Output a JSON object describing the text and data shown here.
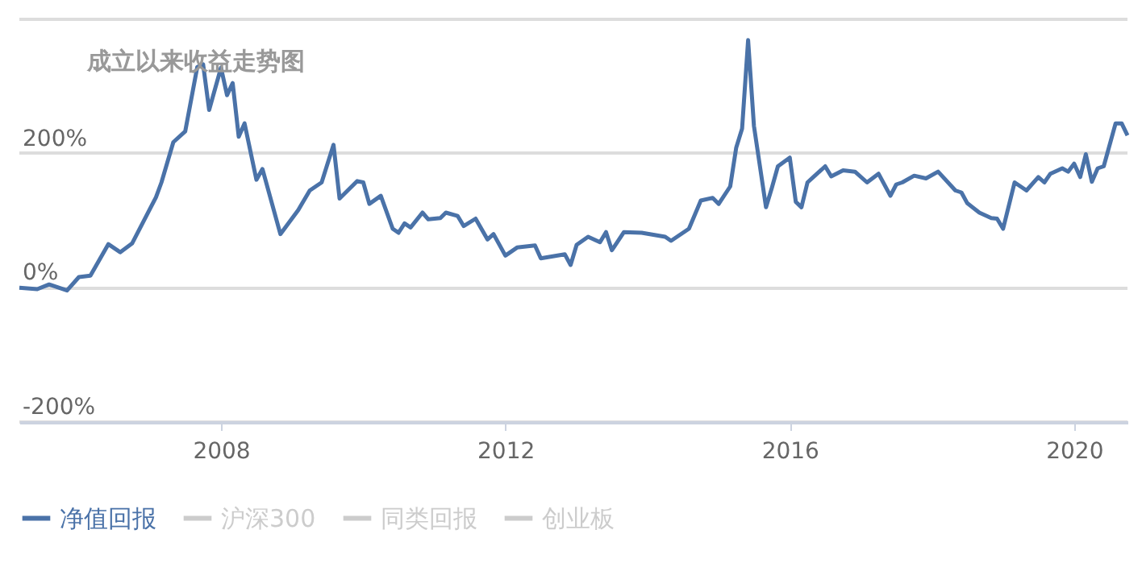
{
  "chart_data": {
    "type": "line",
    "title": "成立以来收益走势图",
    "x": [
      "2005-03",
      "2005-06",
      "2005-08",
      "2005-11",
      "2006-01",
      "2006-03",
      "2006-06",
      "2006-08",
      "2006-10",
      "2007-02",
      "2007-03",
      "2007-05",
      "2007-07",
      "2007-09",
      "2007-10",
      "2007-11",
      "2008-01",
      "2008-02",
      "2008-03",
      "2008-04",
      "2008-05",
      "2008-07",
      "2008-08",
      "2008-11",
      "2009-02",
      "2009-04",
      "2009-06",
      "2009-08",
      "2009-09",
      "2009-12",
      "2010-01",
      "2010-02",
      "2010-04",
      "2010-06",
      "2010-07",
      "2010-08",
      "2010-09",
      "2010-11",
      "2010-12",
      "2011-02",
      "2011-03",
      "2011-05",
      "2011-06",
      "2011-08",
      "2011-10",
      "2011-11",
      "2012-01",
      "2012-03",
      "2012-06",
      "2012-07",
      "2012-11",
      "2012-12",
      "2013-01",
      "2013-03",
      "2013-05",
      "2013-06",
      "2013-07",
      "2013-09",
      "2013-12",
      "2014-04",
      "2014-05",
      "2014-08",
      "2014-10",
      "2014-12",
      "2015-01",
      "2015-03",
      "2015-04",
      "2015-05",
      "2015-06",
      "2015-07",
      "2015-09",
      "2015-10",
      "2015-11",
      "2016-01",
      "2016-02",
      "2016-03",
      "2016-04",
      "2016-05",
      "2016-07",
      "2016-08",
      "2016-10",
      "2016-12",
      "2017-02",
      "2017-04",
      "2017-06",
      "2017-07",
      "2017-08",
      "2017-10",
      "2017-12",
      "2018-02",
      "2018-05",
      "2018-06",
      "2018-07",
      "2018-09",
      "2018-11",
      "2018-12",
      "2019-01",
      "2019-03",
      "2019-05",
      "2019-07",
      "2019-08",
      "2019-09",
      "2019-11",
      "2019-12",
      "2020-01",
      "2020-02",
      "2020-03",
      "2020-04",
      "2020-05",
      "2020-06",
      "2020-08",
      "2020-09",
      "2020-10"
    ],
    "series": [
      {
        "name": "净值回报",
        "color": "#4a72a8",
        "values": [
          0,
          -2,
          5,
          -4,
          16,
          18,
          65,
          53,
          66,
          135,
          157,
          217,
          233,
          329,
          333,
          265,
          328,
          287,
          305,
          225,
          245,
          161,
          177,
          80,
          116,
          145,
          157,
          213,
          133,
          159,
          157,
          125,
          137,
          88,
          82,
          96,
          90,
          112,
          102,
          104,
          112,
          107,
          92,
          103,
          72,
          80,
          48,
          60,
          63,
          44,
          50,
          34,
          64,
          76,
          68,
          83,
          56,
          83,
          82,
          76,
          70,
          88,
          130,
          134,
          125,
          151,
          209,
          237,
          369,
          241,
          120,
          149,
          181,
          194,
          128,
          120,
          157,
          165,
          181,
          166,
          175,
          173,
          157,
          170,
          137,
          154,
          157,
          167,
          163,
          173,
          145,
          142,
          126,
          112,
          104,
          103,
          88,
          157,
          145,
          165,
          157,
          170,
          178,
          173,
          185,
          165,
          199,
          158,
          178,
          181,
          245,
          245,
          227
        ]
      },
      {
        "name": "沪深300",
        "color": "#cccccc",
        "values": [
          null,
          null,
          null,
          null,
          null,
          null,
          null,
          null,
          null,
          null,
          null,
          null,
          null,
          null,
          null,
          null,
          null,
          null,
          null,
          null,
          null,
          null,
          null,
          null,
          null,
          null,
          null,
          null,
          null,
          null,
          null,
          null,
          null,
          null,
          null,
          null,
          null,
          null,
          null,
          null,
          null,
          null,
          null,
          null,
          null,
          null,
          null,
          null,
          null,
          null,
          null,
          null,
          null,
          null,
          null,
          null,
          null,
          null,
          null,
          null,
          null,
          null,
          null,
          null,
          null,
          null,
          null,
          null,
          null,
          null,
          null,
          null,
          null,
          null,
          null,
          null,
          null,
          null,
          null,
          null,
          null,
          null,
          null,
          null,
          null,
          null,
          null,
          null,
          null,
          null,
          null,
          null,
          null,
          null,
          null,
          null,
          null,
          null,
          null,
          null,
          null,
          null,
          null,
          null,
          null,
          null,
          null,
          null,
          null,
          null,
          null,
          null,
          null
        ]
      },
      {
        "name": "同类回报",
        "color": "#cccccc",
        "values": [
          null,
          null,
          null,
          null,
          null,
          null,
          null,
          null,
          null,
          null,
          null,
          null,
          null,
          null,
          null,
          null,
          null,
          null,
          null,
          null,
          null,
          null,
          null,
          null,
          null,
          null,
          null,
          null,
          null,
          null,
          null,
          null,
          null,
          null,
          null,
          null,
          null,
          null,
          null,
          null,
          null,
          null,
          null,
          null,
          null,
          null,
          null,
          null,
          null,
          null,
          null,
          null,
          null,
          null,
          null,
          null,
          null,
          null,
          null,
          null,
          null,
          null,
          null,
          null,
          null,
          null,
          null,
          null,
          null,
          null,
          null,
          null,
          null,
          null,
          null,
          null,
          null,
          null,
          null,
          null,
          null,
          null,
          null,
          null,
          null,
          null,
          null,
          null,
          null,
          null,
          null,
          null,
          null,
          null,
          null,
          null,
          null,
          null,
          null,
          null,
          null,
          null,
          null,
          null,
          null,
          null,
          null,
          null,
          null,
          null,
          null,
          null,
          null
        ]
      },
      {
        "name": "创业板",
        "color": "#cccccc",
        "values": [
          null,
          null,
          null,
          null,
          null,
          null,
          null,
          null,
          null,
          null,
          null,
          null,
          null,
          null,
          null,
          null,
          null,
          null,
          null,
          null,
          null,
          null,
          null,
          null,
          null,
          null,
          null,
          null,
          null,
          null,
          null,
          null,
          null,
          null,
          null,
          null,
          null,
          null,
          null,
          null,
          null,
          null,
          null,
          null,
          null,
          null,
          null,
          null,
          null,
          null,
          null,
          null,
          null,
          null,
          null,
          null,
          null,
          null,
          null,
          null,
          null,
          null,
          null,
          null,
          null,
          null,
          null,
          null,
          null,
          null,
          null,
          null,
          null,
          null,
          null,
          null,
          null,
          null,
          null,
          null,
          null,
          null,
          null,
          null,
          null,
          null,
          null,
          null,
          null,
          null,
          null,
          null,
          null,
          null,
          null,
          null,
          null,
          null,
          null,
          null,
          null,
          null,
          null,
          null,
          null,
          null,
          null,
          null,
          null,
          null,
          null,
          null,
          null
        ]
      }
    ],
    "xlim": [
      "2005-03",
      "2020-10"
    ],
    "xticks": [
      "2008",
      "2012",
      "2016",
      "2020"
    ],
    "ylim": [
      -200,
      400
    ],
    "yticks": [
      {
        "value": -200,
        "label": "-200%"
      },
      {
        "value": 0,
        "label": "0%"
      },
      {
        "value": 200,
        "label": "200%"
      },
      {
        "value": 400,
        "label": null
      }
    ],
    "grid": "y",
    "legend": "bottom",
    "line_style": "solid"
  }
}
